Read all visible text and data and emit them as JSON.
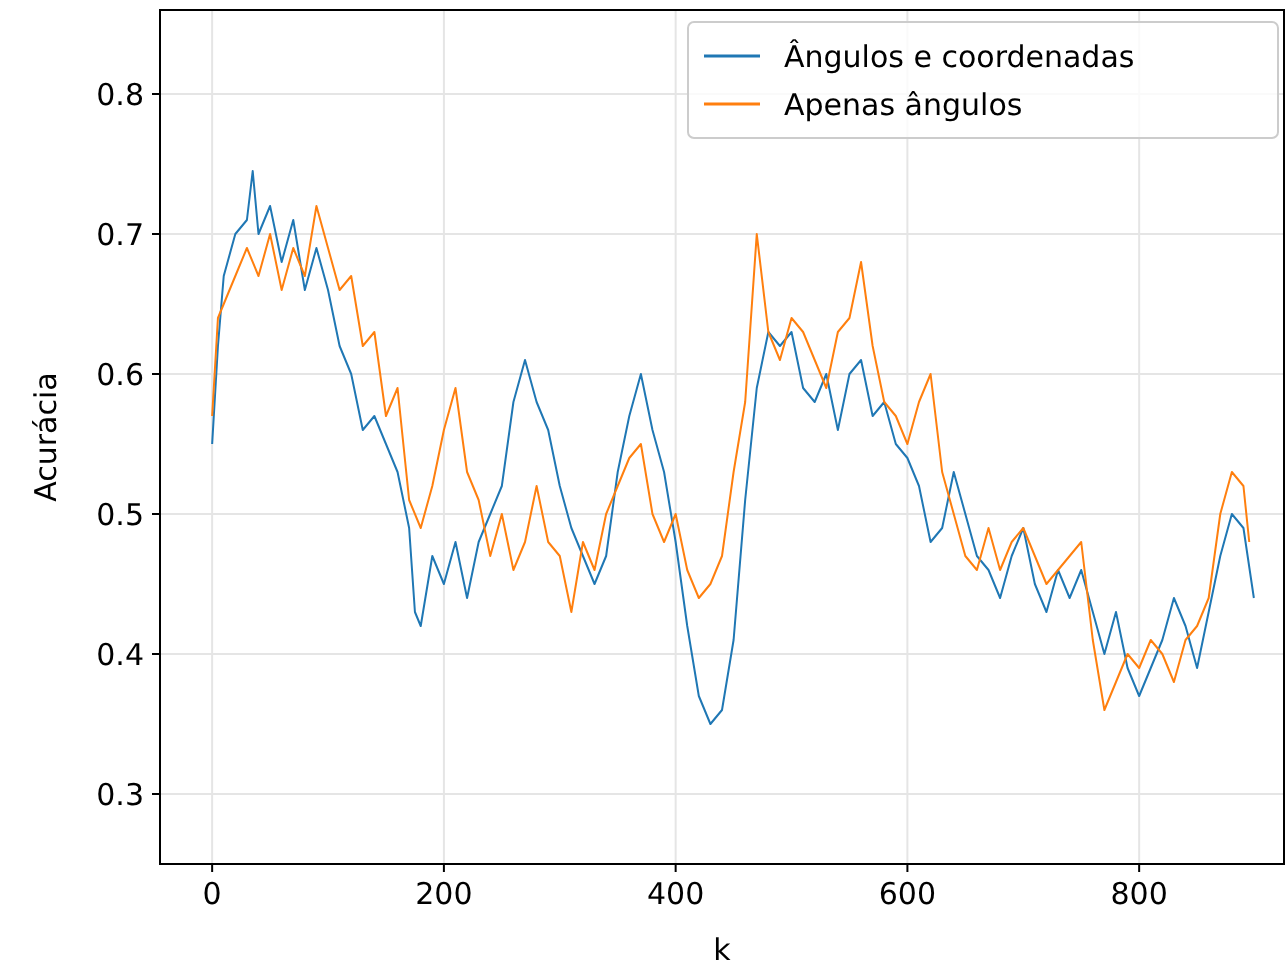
{
  "chart_data": {
    "type": "line",
    "xlabel": "k",
    "ylabel": "Acurácia",
    "xlim": [
      -45,
      925
    ],
    "ylim": [
      0.25,
      0.86
    ],
    "xticks": [
      0,
      200,
      400,
      600,
      800
    ],
    "yticks": [
      {
        "value": 0.3,
        "label": "0.3"
      },
      {
        "value": 0.4,
        "label": "0.4"
      },
      {
        "value": 0.5,
        "label": "0.5"
      },
      {
        "value": 0.6,
        "label": "0.6"
      },
      {
        "value": 0.7,
        "label": "0.7"
      },
      {
        "value": 0.8,
        "label": "0.8"
      }
    ],
    "grid": true,
    "legend": "top right",
    "line_style": "solid",
    "marker": "none",
    "series": [
      {
        "name": "Ângulos e coordenadas",
        "color": "#1f77b4",
        "x": [
          0,
          5,
          10,
          20,
          30,
          35,
          40,
          50,
          60,
          70,
          80,
          90,
          100,
          110,
          120,
          130,
          140,
          150,
          160,
          170,
          175,
          180,
          190,
          200,
          210,
          220,
          230,
          240,
          250,
          260,
          270,
          280,
          290,
          300,
          310,
          320,
          330,
          340,
          350,
          360,
          370,
          380,
          390,
          400,
          410,
          420,
          430,
          440,
          450,
          460,
          470,
          480,
          490,
          500,
          510,
          520,
          530,
          540,
          550,
          560,
          570,
          580,
          590,
          600,
          610,
          620,
          630,
          640,
          650,
          660,
          670,
          680,
          690,
          700,
          710,
          720,
          730,
          740,
          750,
          760,
          770,
          780,
          790,
          800,
          810,
          820,
          830,
          840,
          850,
          860,
          870,
          880,
          890,
          899
        ],
        "values": [
          0.55,
          0.62,
          0.67,
          0.7,
          0.71,
          0.745,
          0.7,
          0.72,
          0.68,
          0.71,
          0.66,
          0.69,
          0.66,
          0.62,
          0.6,
          0.56,
          0.57,
          0.55,
          0.53,
          0.49,
          0.43,
          0.42,
          0.47,
          0.45,
          0.48,
          0.44,
          0.48,
          0.5,
          0.52,
          0.58,
          0.61,
          0.58,
          0.56,
          0.52,
          0.49,
          0.47,
          0.45,
          0.47,
          0.53,
          0.57,
          0.6,
          0.56,
          0.53,
          0.48,
          0.42,
          0.37,
          0.35,
          0.36,
          0.41,
          0.51,
          0.59,
          0.63,
          0.62,
          0.63,
          0.59,
          0.58,
          0.6,
          0.56,
          0.6,
          0.61,
          0.57,
          0.58,
          0.55,
          0.54,
          0.52,
          0.48,
          0.49,
          0.53,
          0.5,
          0.47,
          0.46,
          0.44,
          0.47,
          0.49,
          0.45,
          0.43,
          0.46,
          0.44,
          0.46,
          0.43,
          0.4,
          0.43,
          0.39,
          0.37,
          0.39,
          0.41,
          0.44,
          0.42,
          0.39,
          0.43,
          0.47,
          0.5,
          0.49,
          0.44
        ]
      },
      {
        "name": "Apenas ângulos",
        "color": "#ff7f0e",
        "x": [
          0,
          5,
          10,
          20,
          30,
          40,
          50,
          60,
          70,
          80,
          90,
          100,
          110,
          120,
          130,
          140,
          150,
          160,
          170,
          180,
          190,
          200,
          210,
          220,
          230,
          240,
          250,
          260,
          270,
          280,
          290,
          300,
          310,
          320,
          330,
          340,
          350,
          360,
          370,
          380,
          390,
          400,
          410,
          420,
          430,
          440,
          450,
          460,
          470,
          480,
          490,
          500,
          510,
          520,
          530,
          540,
          550,
          560,
          570,
          580,
          590,
          600,
          610,
          620,
          630,
          640,
          650,
          660,
          670,
          680,
          690,
          700,
          710,
          720,
          730,
          740,
          750,
          760,
          770,
          780,
          790,
          800,
          810,
          820,
          830,
          840,
          850,
          860,
          870,
          880,
          890,
          895
        ],
        "values": [
          0.57,
          0.64,
          0.65,
          0.67,
          0.69,
          0.67,
          0.7,
          0.66,
          0.69,
          0.67,
          0.72,
          0.69,
          0.66,
          0.67,
          0.62,
          0.63,
          0.57,
          0.59,
          0.51,
          0.49,
          0.52,
          0.56,
          0.59,
          0.53,
          0.51,
          0.47,
          0.5,
          0.46,
          0.48,
          0.52,
          0.48,
          0.47,
          0.43,
          0.48,
          0.46,
          0.5,
          0.52,
          0.54,
          0.55,
          0.5,
          0.48,
          0.5,
          0.46,
          0.44,
          0.45,
          0.47,
          0.53,
          0.58,
          0.7,
          0.63,
          0.61,
          0.64,
          0.63,
          0.61,
          0.59,
          0.63,
          0.64,
          0.68,
          0.62,
          0.58,
          0.57,
          0.55,
          0.58,
          0.6,
          0.53,
          0.5,
          0.47,
          0.46,
          0.49,
          0.46,
          0.48,
          0.49,
          0.47,
          0.45,
          0.46,
          0.47,
          0.48,
          0.41,
          0.36,
          0.38,
          0.4,
          0.39,
          0.41,
          0.4,
          0.38,
          0.41,
          0.42,
          0.44,
          0.5,
          0.53,
          0.52,
          0.48
        ]
      }
    ]
  }
}
